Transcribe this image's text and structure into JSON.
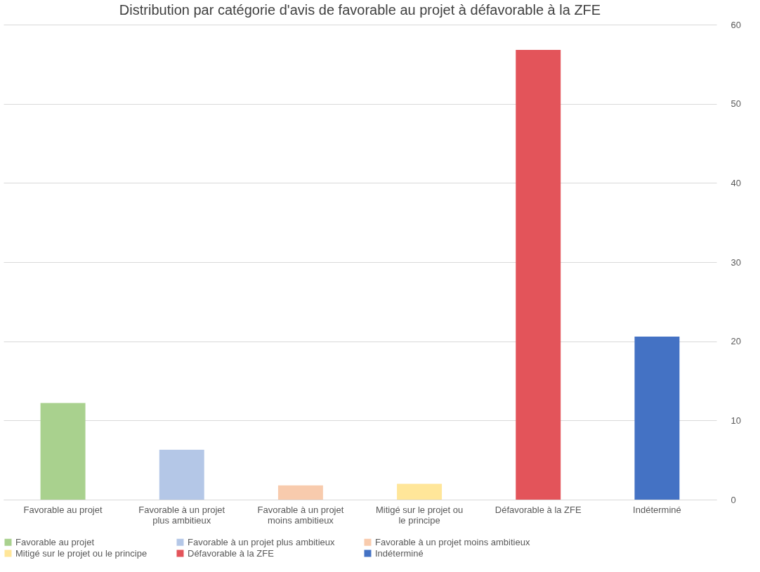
{
  "chart_data": {
    "type": "bar",
    "title": "Distribution par catégorie d'avis de favorable au projet à défavorable à la ZFE",
    "categories": [
      "Favorable au projet",
      "Favorable à un projet plus ambitieux",
      "Favorable à un projet moins ambitieux",
      "Mitigé sur le projet ou le principe",
      "Défavorable à la ZFE",
      "Indéterminé"
    ],
    "series": [
      {
        "name": "Favorable au projet",
        "color": "#a9d18e",
        "values": [
          12.2,
          null,
          null,
          null,
          null,
          null
        ]
      },
      {
        "name": "Favorable à un projet plus ambitieux",
        "color": "#b4c7e7",
        "values": [
          null,
          6.3,
          null,
          null,
          null,
          null
        ]
      },
      {
        "name": "Favorable à un projet moins ambitieux",
        "color": "#f8cbad",
        "values": [
          null,
          null,
          1.8,
          null,
          null,
          null
        ]
      },
      {
        "name": "Mitigé sur le projet ou le principe",
        "color": "#ffe699",
        "values": [
          null,
          null,
          null,
          2.0,
          null,
          null
        ]
      },
      {
        "name": "Défavorable à la ZFE",
        "color": "#e3545a",
        "values": [
          null,
          null,
          null,
          null,
          56.8,
          null
        ]
      },
      {
        "name": "Indéterminé",
        "color": "#4472c4",
        "values": [
          null,
          null,
          null,
          null,
          null,
          20.6
        ]
      }
    ],
    "ylim": [
      0,
      60
    ],
    "yticks": [
      0,
      10,
      20,
      30,
      40,
      50,
      60
    ],
    "grid": "y",
    "legend": "bottom"
  }
}
